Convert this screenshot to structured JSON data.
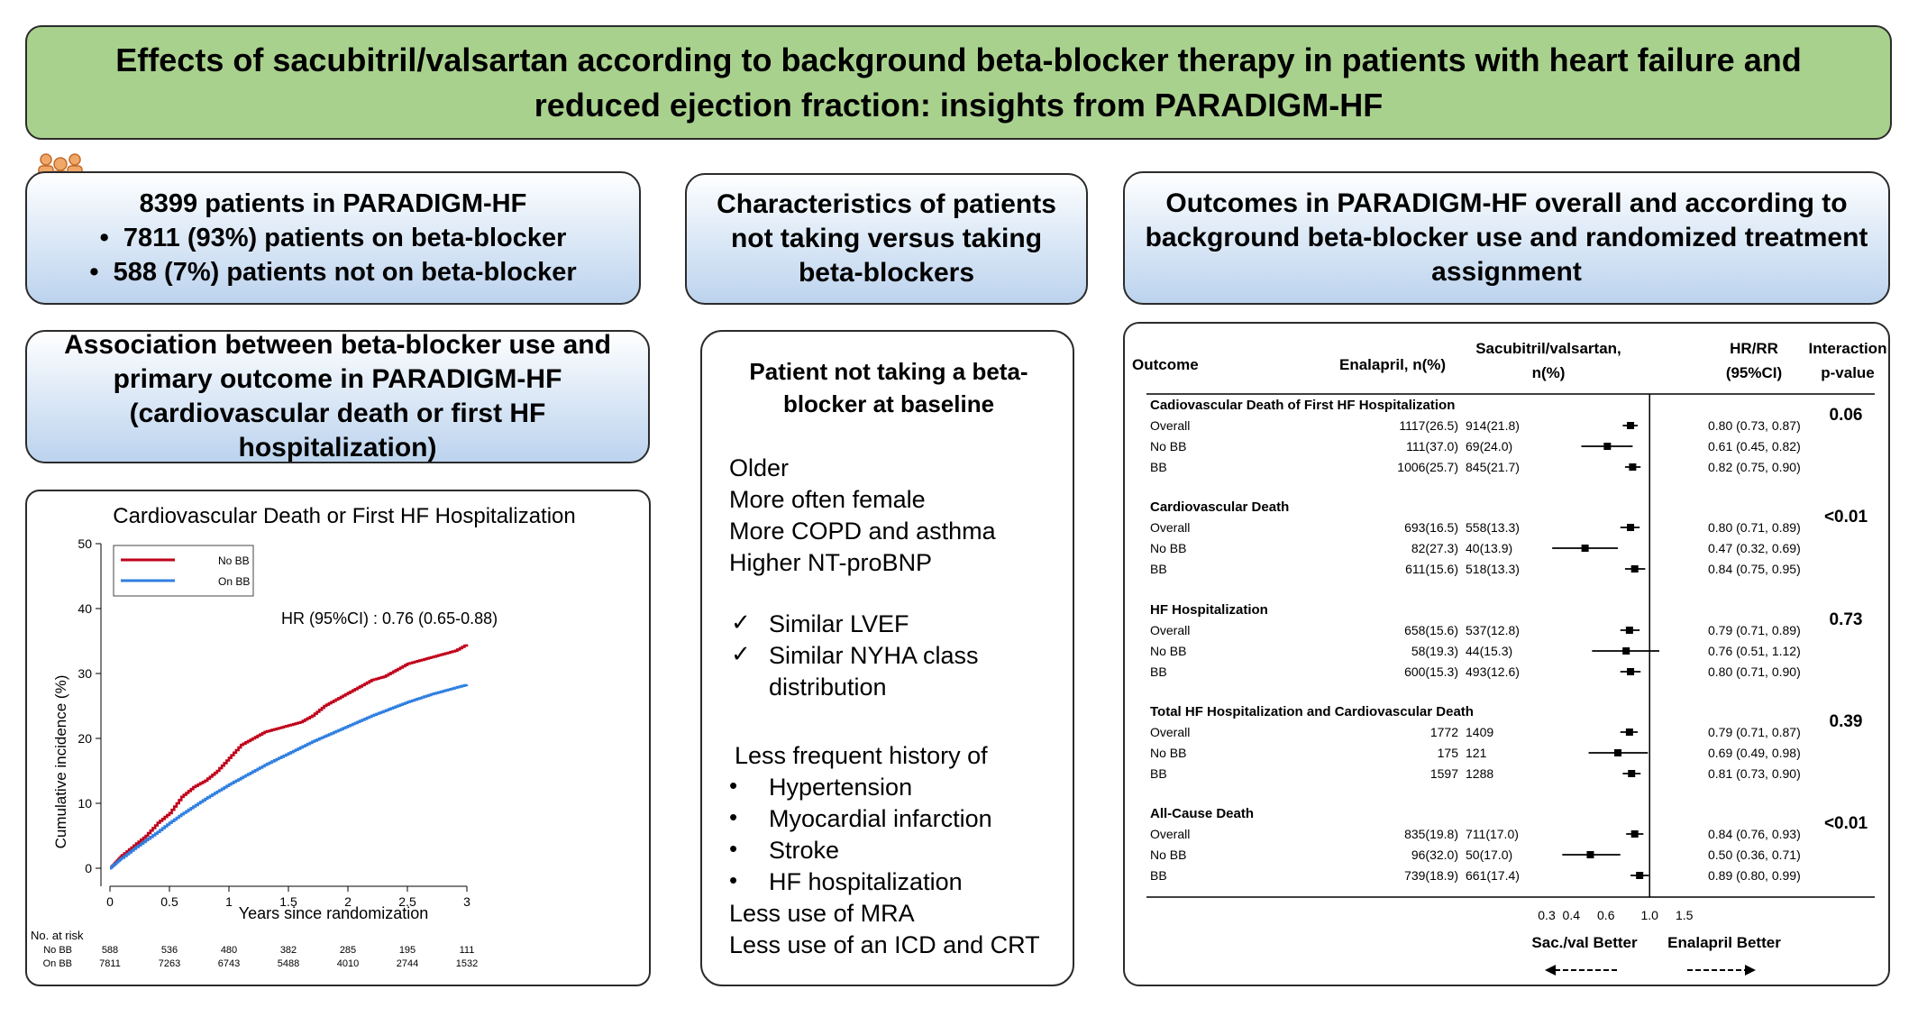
{
  "title": "Effects of sacubitril/valsartan according to background beta-blocker therapy in patients with heart failure and reduced ejection fraction: insights from PARADIGM-HF",
  "icon": "people-icon",
  "patients": {
    "line1": "8399 patients in PARADIGM-HF",
    "line2": "7811 (93%) patients on beta-blocker",
    "line3": "588 (7%) patients not on beta-blocker"
  },
  "characteristics_header": "Characteristics of patients not taking versus taking beta-blockers",
  "outcomes_header": "Outcomes in PARADIGM-HF overall and according to background beta-blocker use and randomized treatment assignment",
  "association_header": "Association between beta-blocker use and primary outcome in PARADIGM-HF (cardiovascular death or first HF hospitalization)",
  "characteristics": {
    "title": "Patient not taking a beta-blocker at baseline",
    "items1": [
      "Older",
      "More often female",
      "More COPD and asthma",
      "Higher NT-proBNP"
    ],
    "check_items": [
      "Similar LVEF",
      "Similar NYHA class",
      "distribution"
    ],
    "history_header": "Less frequent history of",
    "history_items": [
      "Hypertension",
      "Myocardial infarction",
      "Stroke",
      "HF hospitalization"
    ],
    "items2": [
      "Less use of MRA",
      "Less use of an ICD and CRT"
    ]
  },
  "chart_data": [
    {
      "type": "line",
      "title": "Cardiovascular Death or First HF Hospitalization",
      "xlabel": "Years since randomization",
      "ylabel": "Cumulative incidence (%)",
      "xlim": [
        0,
        3
      ],
      "ylim": [
        0,
        50
      ],
      "x_ticks": [
        "0",
        "0.5",
        "1",
        "1.5",
        "2",
        "2.5",
        "3"
      ],
      "y_ticks": [
        "0",
        "10",
        "20",
        "30",
        "40",
        "50"
      ],
      "annotation": "HR (95%CI) : 0.76 (0.65-0.88)",
      "legend": [
        "No BB",
        "On BB"
      ],
      "legend_position": "top-left",
      "colors": {
        "No BB": "#c0001a",
        "On BB": "#2f7fe0"
      },
      "series": [
        {
          "name": "No BB",
          "x": [
            0,
            0.05,
            0.1,
            0.2,
            0.3,
            0.4,
            0.5,
            0.6,
            0.7,
            0.8,
            0.9,
            1.0,
            1.1,
            1.2,
            1.3,
            1.4,
            1.5,
            1.6,
            1.7,
            1.8,
            1.9,
            2.0,
            2.1,
            2.2,
            2.3,
            2.4,
            2.5,
            2.6,
            2.7,
            2.8,
            2.9,
            3.0
          ],
          "y": [
            0,
            1.0,
            2.0,
            3.5,
            5.0,
            7.0,
            8.5,
            11.0,
            12.5,
            13.5,
            15.0,
            17.0,
            19.0,
            20.0,
            21.0,
            21.5,
            22.0,
            22.5,
            23.5,
            25.0,
            26.0,
            27.0,
            28.0,
            29.0,
            29.5,
            30.5,
            31.5,
            32.0,
            32.5,
            33.0,
            33.5,
            34.5
          ]
        },
        {
          "name": "On BB",
          "x": [
            0,
            0.05,
            0.1,
            0.2,
            0.3,
            0.4,
            0.5,
            0.6,
            0.7,
            0.8,
            0.9,
            1.0,
            1.1,
            1.2,
            1.3,
            1.4,
            1.5,
            1.6,
            1.7,
            1.8,
            1.9,
            2.0,
            2.1,
            2.2,
            2.3,
            2.4,
            2.5,
            2.6,
            2.7,
            2.8,
            2.9,
            3.0
          ],
          "y": [
            0,
            0.8,
            1.6,
            3.0,
            4.3,
            5.6,
            7.0,
            8.3,
            9.5,
            10.7,
            11.8,
            12.9,
            13.9,
            14.9,
            15.9,
            16.8,
            17.7,
            18.6,
            19.5,
            20.3,
            21.1,
            21.9,
            22.7,
            23.5,
            24.2,
            24.9,
            25.6,
            26.2,
            26.8,
            27.3,
            27.8,
            28.3
          ]
        }
      ],
      "at_risk": {
        "label": "No. at risk",
        "rows": [
          {
            "name": "No BB",
            "values": [
              "588",
              "536",
              "480",
              "382",
              "285",
              "195",
              "111"
            ]
          },
          {
            "name": "On BB",
            "values": [
              "7811",
              "7263",
              "6743",
              "5488",
              "4010",
              "2744",
              "1532"
            ]
          }
        ]
      }
    },
    {
      "type": "forest",
      "columns": {
        "outcome": "Outcome",
        "enalapril": "Enalapril, n(%)",
        "sacval_1": "Sacubitril/valsartan,",
        "sacval_2": "n(%)",
        "hr_1": "HR/RR",
        "hr_2": "(95%CI)",
        "p_1": "Interaction",
        "p_2": "p-value"
      },
      "x_ticks": [
        "0.3",
        "0.4",
        "0.6",
        "1.0",
        "1.5"
      ],
      "x_tick_values": [
        0.3,
        0.4,
        0.6,
        1.0,
        1.5
      ],
      "xlim": [
        0.3,
        1.8
      ],
      "scale": "log",
      "left_label": "Sac./val Better",
      "right_label": "Enalapril Better",
      "groups": [
        {
          "name": "Cadiovascular Death of First HF Hospitalization",
          "p": "0.06",
          "rows": [
            {
              "label": "Overall",
              "enal": "1117(26.5)",
              "sac": "914(21.8)",
              "ci_text": "0.80 (0.73, 0.87)",
              "hr": 0.8,
              "lo": 0.73,
              "hi": 0.87
            },
            {
              "label": "No BB",
              "enal": "111(37.0)",
              "sac": "69(24.0)",
              "ci_text": "0.61 (0.45, 0.82)",
              "hr": 0.61,
              "lo": 0.45,
              "hi": 0.82
            },
            {
              "label": "BB",
              "enal": "1006(25.7)",
              "sac": "845(21.7)",
              "ci_text": "0.82 (0.75, 0.90)",
              "hr": 0.82,
              "lo": 0.75,
              "hi": 0.9
            }
          ]
        },
        {
          "name": "Cardiovascular Death",
          "p": "<0.01",
          "rows": [
            {
              "label": "Overall",
              "enal": "693(16.5)",
              "sac": "558(13.3)",
              "ci_text": "0.80 (0.71, 0.89)",
              "hr": 0.8,
              "lo": 0.71,
              "hi": 0.89
            },
            {
              "label": "No BB",
              "enal": "82(27.3)",
              "sac": "40(13.9)",
              "ci_text": "0.47 (0.32, 0.69)",
              "hr": 0.47,
              "lo": 0.32,
              "hi": 0.69
            },
            {
              "label": "BB",
              "enal": "611(15.6)",
              "sac": "518(13.3)",
              "ci_text": "0.84 (0.75, 0.95)",
              "hr": 0.84,
              "lo": 0.75,
              "hi": 0.95
            }
          ]
        },
        {
          "name": "HF Hospitalization",
          "p": "0.73",
          "rows": [
            {
              "label": "Overall",
              "enal": "658(15.6)",
              "sac": "537(12.8)",
              "ci_text": "0.79 (0.71, 0.89)",
              "hr": 0.79,
              "lo": 0.71,
              "hi": 0.89
            },
            {
              "label": "No BB",
              "enal": "58(19.3)",
              "sac": "44(15.3)",
              "ci_text": "0.76 (0.51, 1.12)",
              "hr": 0.76,
              "lo": 0.51,
              "hi": 1.12
            },
            {
              "label": "BB",
              "enal": "600(15.3)",
              "sac": "493(12.6)",
              "ci_text": "0.80 (0.71, 0.90)",
              "hr": 0.8,
              "lo": 0.71,
              "hi": 0.9
            }
          ]
        },
        {
          "name": "Total HF Hospitalization and Cardiovascular Death",
          "p": "0.39",
          "rows": [
            {
              "label": "Overall",
              "enal": "1772",
              "sac": "1409",
              "ci_text": "0.79 (0.71, 0.87)",
              "hr": 0.79,
              "lo": 0.71,
              "hi": 0.87
            },
            {
              "label": "No BB",
              "enal": "175",
              "sac": "121",
              "ci_text": "0.69 (0.49, 0.98)",
              "hr": 0.69,
              "lo": 0.49,
              "hi": 0.98
            },
            {
              "label": "BB",
              "enal": "1597",
              "sac": "1288",
              "ci_text": "0.81 (0.73, 0.90)",
              "hr": 0.81,
              "lo": 0.73,
              "hi": 0.9
            }
          ]
        },
        {
          "name": "All-Cause Death",
          "p": "<0.01",
          "rows": [
            {
              "label": "Overall",
              "enal": "835(19.8)",
              "sac": "711(17.0)",
              "ci_text": "0.84 (0.76, 0.93)",
              "hr": 0.84,
              "lo": 0.76,
              "hi": 0.93
            },
            {
              "label": "No BB",
              "enal": "96(32.0)",
              "sac": "50(17.0)",
              "ci_text": "0.50 (0.36, 0.71)",
              "hr": 0.5,
              "lo": 0.36,
              "hi": 0.71
            },
            {
              "label": "BB",
              "enal": "739(18.9)",
              "sac": "661(17.4)",
              "ci_text": "0.89 (0.80, 0.99)",
              "hr": 0.89,
              "lo": 0.8,
              "hi": 0.99
            }
          ]
        }
      ]
    }
  ]
}
